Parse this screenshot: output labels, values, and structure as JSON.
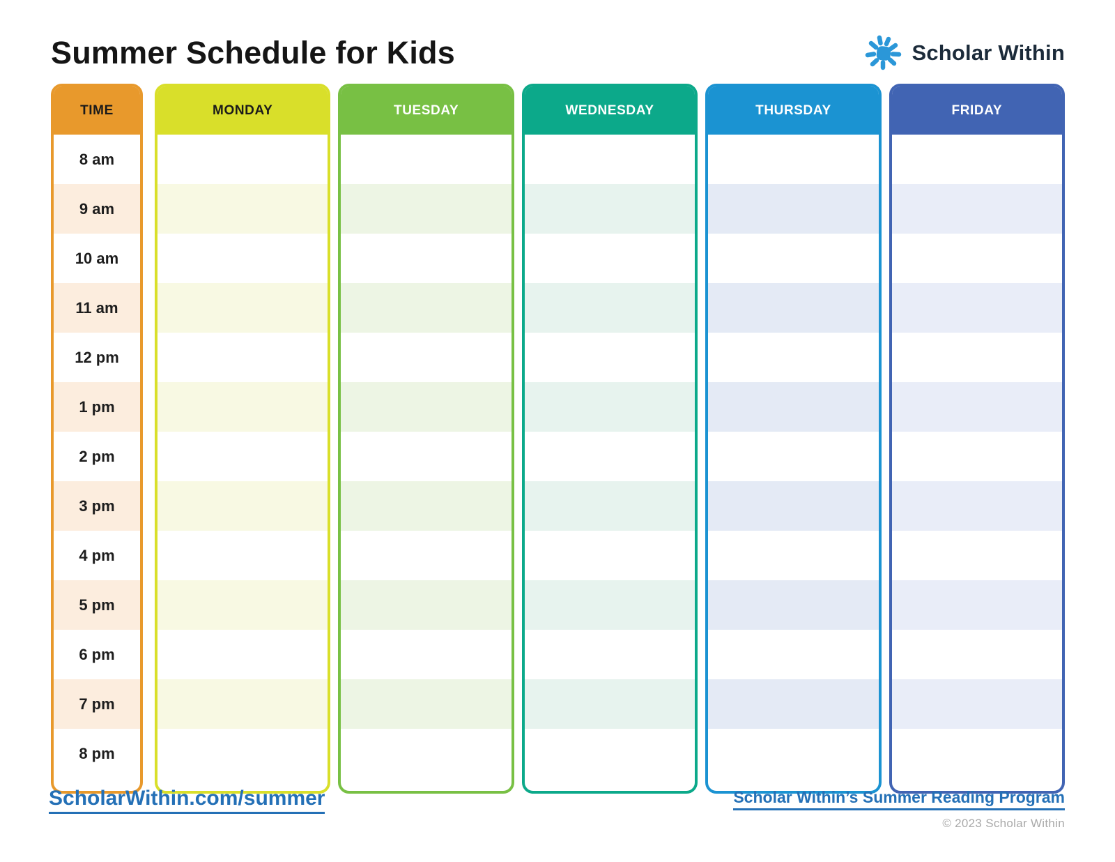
{
  "page": {
    "title": "Summer Schedule for Kids"
  },
  "brand": {
    "name": "Scholar Within",
    "sun_icon_color": "#2B97D8",
    "text_color": "#1C2B3A"
  },
  "schedule": {
    "times": [
      "8 am",
      "9 am",
      "10 am",
      "11 am",
      "12 pm",
      "1 pm",
      "2 pm",
      "3 pm",
      "4 pm",
      "5 pm",
      "6 pm",
      "7 pm",
      "8 pm"
    ],
    "columns": [
      {
        "id": "time",
        "label": "TIME",
        "color": "#E8992C",
        "stripe": "#FCEDDE",
        "header_text": "#1A1A1A",
        "is_time": true
      },
      {
        "id": "monday",
        "label": "MONDAY",
        "color": "#D9DF2A",
        "stripe": "#F8F9E3",
        "header_text": "#1A1A1A",
        "is_time": false
      },
      {
        "id": "tuesday",
        "label": "TUESDAY",
        "color": "#78C044",
        "stripe": "#EDF5E4",
        "header_text": "#FFFFFF",
        "is_time": false
      },
      {
        "id": "wednesday",
        "label": "WEDNESDAY",
        "color": "#0CA98A",
        "stripe": "#E7F3EE",
        "header_text": "#FFFFFF",
        "is_time": false
      },
      {
        "id": "thursday",
        "label": "THURSDAY",
        "color": "#1B93D2",
        "stripe": "#E4EAF5",
        "header_text": "#FFFFFF",
        "is_time": false
      },
      {
        "id": "friday",
        "label": "FRIDAY",
        "color": "#4164B3",
        "stripe": "#E9EDF8",
        "header_text": "#FFFFFF",
        "is_time": false
      }
    ]
  },
  "footer": {
    "left_link": "ScholarWithin.com/summer",
    "right_link": "Scholar Within’s Summer Reading Program",
    "copyright": "© 2023 Scholar Within",
    "link_color": "#2470B6"
  }
}
